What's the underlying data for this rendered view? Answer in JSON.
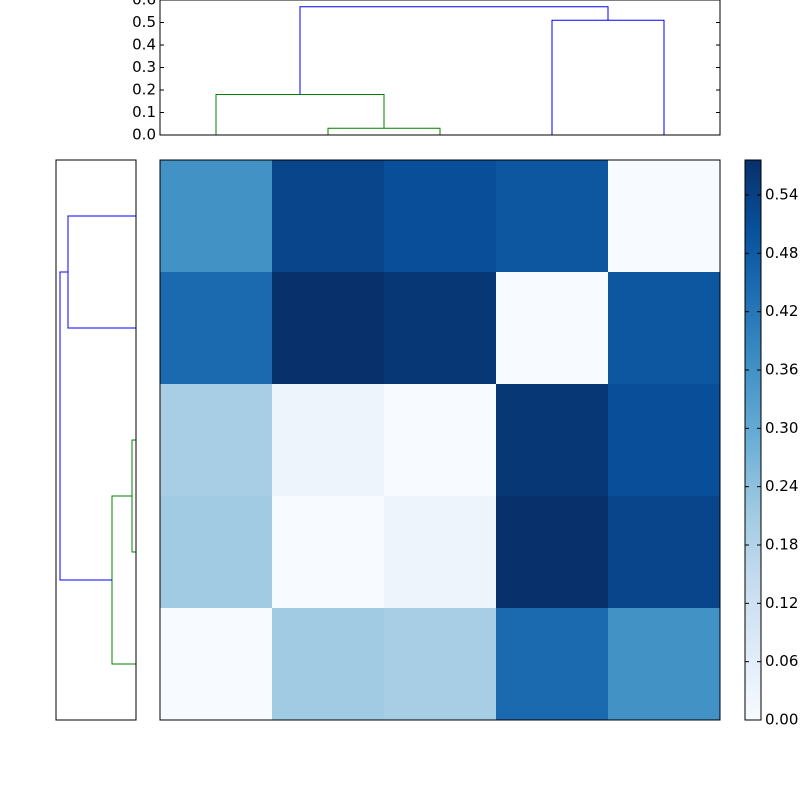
{
  "chart_data": [
    {
      "type": "heatmap",
      "colormap": "Blues",
      "values": [
        [
          0.36,
          0.53,
          0.51,
          0.49,
          0.0
        ],
        [
          0.45,
          0.576,
          0.56,
          0.0,
          0.49
        ],
        [
          0.2,
          0.03,
          0.0,
          0.56,
          0.51
        ],
        [
          0.21,
          0.0,
          0.03,
          0.576,
          0.53
        ],
        [
          0.0,
          0.21,
          0.2,
          0.45,
          0.36
        ]
      ],
      "clim": [
        0,
        0.576
      ],
      "cticks": [
        {
          "value": 0,
          "label": "0.00"
        },
        0.06,
        0.12,
        0.18,
        0.24,
        {
          "value": 0.3,
          "label": "0.30"
        },
        0.36,
        0.42,
        0.48,
        0.54
      ]
    },
    {
      "type": "dendrogram",
      "orientation": "top",
      "links": [
        {
          "children": [
            1,
            2
          ],
          "height": 0.03,
          "color": "#008000"
        },
        {
          "children": [
            0,
            5
          ],
          "height": 0.18,
          "color": "#008000"
        },
        {
          "children": [
            3,
            4
          ],
          "height": 0.51,
          "color": "#0000ff"
        },
        {
          "children": [
            6,
            7
          ],
          "height": 0.57,
          "color": "#0000ff"
        }
      ],
      "ylim": [
        0,
        0.6
      ],
      "yticks": [
        {
          "value": 0,
          "label": "0.0"
        },
        0.1,
        0.2,
        0.3,
        0.4,
        0.5,
        0.6
      ]
    },
    {
      "type": "dendrogram",
      "orientation": "left",
      "links": [
        {
          "children": [
            2,
            3
          ],
          "height": 0.03,
          "color": "#008000"
        },
        {
          "children": [
            5,
            4
          ],
          "height": 0.18,
          "color": "#008000"
        },
        {
          "children": [
            0,
            1
          ],
          "height": 0.51,
          "color": "#0000ff"
        },
        {
          "children": [
            7,
            6
          ],
          "height": 0.57,
          "color": "#0000ff"
        }
      ],
      "xlim": [
        0.6,
        0
      ]
    }
  ]
}
